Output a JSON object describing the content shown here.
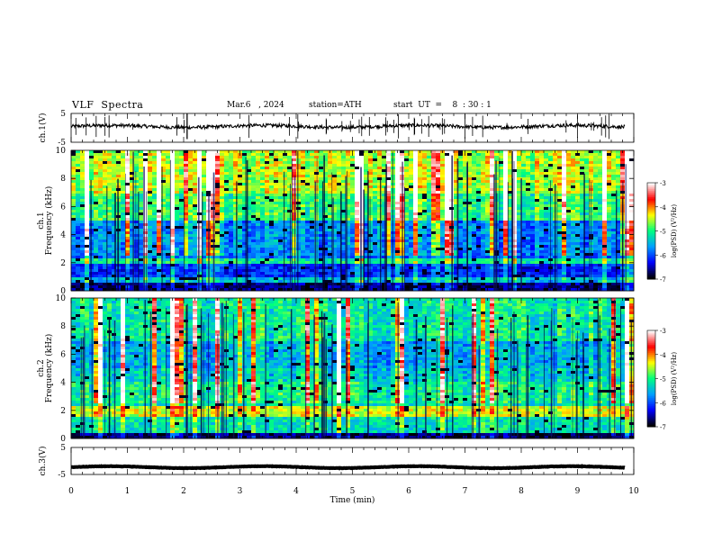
{
  "header": {
    "title": "VLF  Spectra",
    "date": "Mar.6   , 2024",
    "station": "station=ATH",
    "start": "start  UT  =    8  : 30 : 1"
  },
  "chart_data": [
    {
      "type": "line",
      "panel": "ch1-waveform",
      "ylabel": "ch.1(V)",
      "ylim": [
        -5,
        5
      ],
      "yticks": [
        "5",
        "-5"
      ],
      "xlim": [
        0,
        10
      ],
      "baseline_v": 0.5
    },
    {
      "type": "heatmap",
      "panel": "ch1-spectrogram",
      "ylabel": "ch.1\nFrequency  (kHz)",
      "ylim": [
        0,
        10
      ],
      "yticks": [
        "0",
        "2",
        "4",
        "6",
        "8",
        "10"
      ],
      "xlim": [
        0,
        10
      ],
      "z_label": "log(PSD) (V²/Hz)",
      "zlim": [
        -7,
        -3
      ],
      "zticks": [
        "-3",
        "-4",
        "-5",
        "-6",
        "-7"
      ],
      "colorscale": [
        "#000000",
        "#0000ff",
        "#00a0ff",
        "#00ff80",
        "#ffff00",
        "#ff0000",
        "#ffffff"
      ]
    },
    {
      "type": "heatmap",
      "panel": "ch2-spectrogram",
      "ylabel": "ch.2\nFrequency  (kHz)",
      "ylim": [
        0,
        10
      ],
      "yticks": [
        "0",
        "2",
        "4",
        "6",
        "8",
        "10"
      ],
      "xlim": [
        0,
        10
      ],
      "z_label": "log(PSD) (V²/Hz)",
      "zlim": [
        -7,
        -3
      ],
      "zticks": [
        "-3",
        "-4",
        "-5",
        "-6",
        "-7"
      ]
    },
    {
      "type": "line",
      "panel": "ch3-waveform",
      "ylabel": "ch.3(V)",
      "ylim": [
        -5,
        5
      ],
      "yticks": [
        "5",
        "-5"
      ],
      "xlim": [
        0,
        10
      ],
      "baseline_v": -2.3
    }
  ],
  "xaxis": {
    "label": "Time  (min)",
    "ticks": [
      "0",
      "1",
      "2",
      "3",
      "4",
      "5",
      "6",
      "7",
      "8",
      "9",
      "10"
    ]
  }
}
